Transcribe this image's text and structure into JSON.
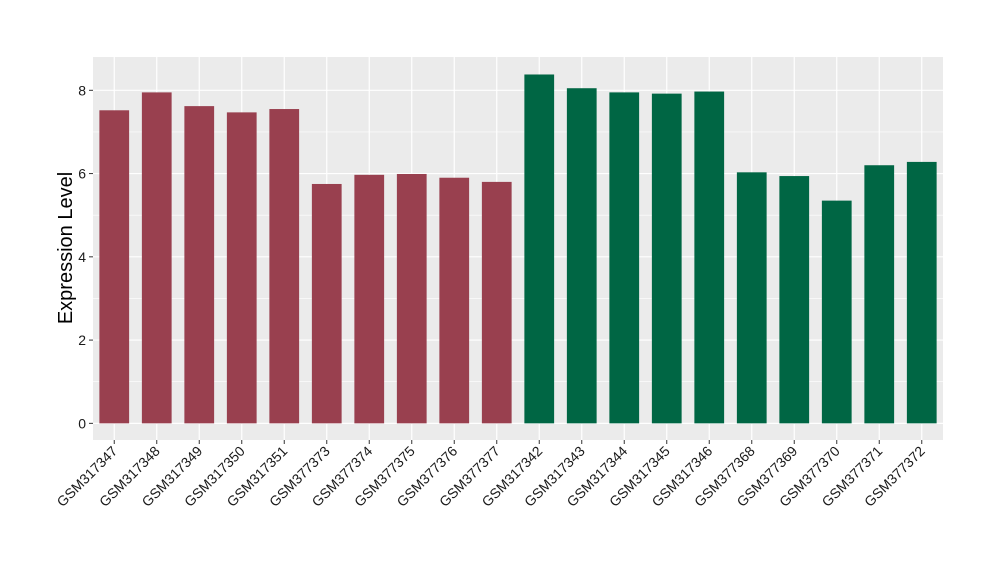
{
  "chart_data": {
    "type": "bar",
    "title": "",
    "xlabel": "",
    "ylabel": "Expression Level",
    "ylim": [
      -0.4,
      8.8
    ],
    "yticks": [
      0,
      2,
      4,
      6,
      8
    ],
    "grid": true,
    "legend": "none",
    "categories": [
      "GSM317347",
      "GSM317348",
      "GSM317349",
      "GSM317350",
      "GSM317351",
      "GSM377373",
      "GSM377374",
      "GSM377375",
      "GSM377376",
      "GSM377377",
      "GSM317342",
      "GSM317343",
      "GSM317344",
      "GSM317345",
      "GSM317346",
      "GSM377368",
      "GSM377369",
      "GSM377370",
      "GSM377371",
      "GSM377372"
    ],
    "values": [
      7.52,
      7.95,
      7.62,
      7.47,
      7.55,
      5.75,
      5.97,
      5.99,
      5.9,
      5.8,
      8.38,
      8.05,
      7.95,
      7.92,
      7.97,
      6.03,
      5.94,
      5.35,
      6.2,
      6.28
    ],
    "colors": [
      "#99404f",
      "#99404f",
      "#99404f",
      "#99404f",
      "#99404f",
      "#99404f",
      "#99404f",
      "#99404f",
      "#99404f",
      "#99404f",
      "#006644",
      "#006644",
      "#006644",
      "#006644",
      "#006644",
      "#006644",
      "#006644",
      "#006644",
      "#006644",
      "#006644"
    ],
    "panel_color": "#ebebeb",
    "grid_color": "#ffffff"
  }
}
